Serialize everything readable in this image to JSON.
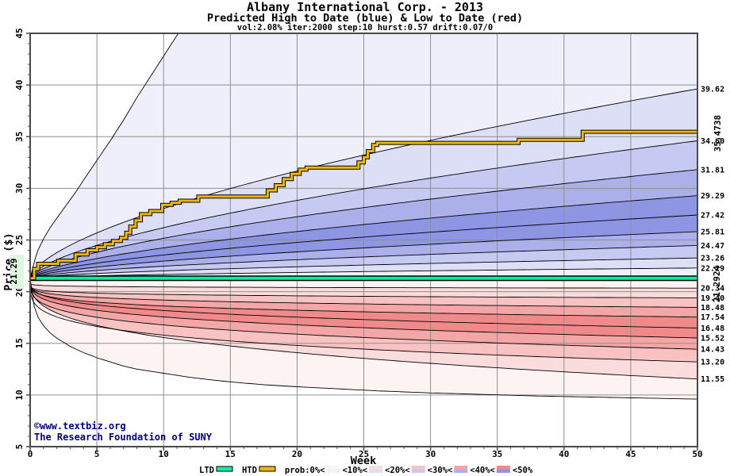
{
  "title": "Albany International Corp. - 2013",
  "subtitle": "Predicted High to Date (blue) &  Low to Date (red)",
  "params_line": "vol:2.08% iter:2000 step:10 hurst:0.57 drift:0.07/0",
  "copyright": {
    "line1": "©www.textbiz.org",
    "line2": "The Research Foundation of SUNY"
  },
  "legend": {
    "ltd_label": "LTD",
    "htd_label": "HTD",
    "prob_labels": [
      "prob:0%<",
      "<10%<",
      "<20%<",
      "<30%<",
      "<40%<",
      "<50%"
    ]
  },
  "colors": {
    "blue_bands": [
      "#eeeffb",
      "#dddff6",
      "#c6c9f1",
      "#abb0eb",
      "#8e95e3"
    ],
    "red_bands": [
      "#fdf3f3",
      "#fbdcdc",
      "#f8c2c2",
      "#f4a5a5",
      "#f08a8a"
    ],
    "htd_line": "#f2b705",
    "ltd_line": "#00f2a0",
    "htd_label": "#c07d00",
    "ltd_label": "#00a87d",
    "start_label_color": "#272770",
    "start_label_bg": "#dff6df",
    "grid": "#8f8f8f",
    "frame": "#4a4a4a",
    "navy": "#000080",
    "curve": "#000000"
  },
  "chart_data": {
    "type": "area",
    "title": "Albany International Corp. - 2013",
    "xlabel": "Week",
    "ylabel": "Price ($)",
    "xlim": [
      0,
      50
    ],
    "ylim": [
      5,
      45
    ],
    "x_ticks": [
      0,
      5,
      10,
      15,
      20,
      25,
      30,
      35,
      40,
      45,
      50
    ],
    "y_ticks": [
      5,
      10,
      15,
      20,
      25,
      30,
      35,
      40,
      45
    ],
    "grid": "on",
    "start_price": 21.29,
    "start_label": "21.29",
    "ltd": {
      "value": 21.2924,
      "label": "21.2924"
    },
    "htd": {
      "final": 35.4738,
      "label": "35.4738",
      "steps": [
        [
          0,
          21.3
        ],
        [
          0.3,
          22.2
        ],
        [
          0.6,
          22.7
        ],
        [
          2.1,
          23.0
        ],
        [
          3.4,
          23.6
        ],
        [
          4.3,
          24.0
        ],
        [
          5.0,
          24.3
        ],
        [
          5.6,
          24.6
        ],
        [
          6.2,
          24.9
        ],
        [
          6.8,
          25.2
        ],
        [
          7.2,
          25.7
        ],
        [
          7.5,
          26.3
        ],
        [
          7.9,
          26.9
        ],
        [
          8.3,
          27.5
        ],
        [
          9.0,
          27.8
        ],
        [
          9.9,
          28.4
        ],
        [
          10.6,
          28.6
        ],
        [
          11.2,
          28.8
        ],
        [
          12.6,
          29.2
        ],
        [
          17.8,
          29.8
        ],
        [
          18.4,
          30.3
        ],
        [
          19.0,
          30.9
        ],
        [
          19.6,
          31.4
        ],
        [
          20.2,
          31.8
        ],
        [
          20.7,
          32.0
        ],
        [
          24.6,
          32.5
        ],
        [
          25.0,
          33.0
        ],
        [
          25.3,
          33.6
        ],
        [
          25.7,
          34.2
        ],
        [
          26.0,
          34.4
        ],
        [
          36.6,
          34.7
        ],
        [
          41.4,
          35.47
        ],
        [
          50,
          35.47
        ]
      ]
    },
    "high_envelope": [
      [
        0,
        21.29
      ],
      [
        0.5,
        23.8
      ],
      [
        1,
        25.1
      ],
      [
        1.5,
        26.2
      ],
      [
        2,
        27.1
      ],
      [
        2.5,
        28.0
      ],
      [
        3,
        28.9
      ],
      [
        3.5,
        29.8
      ],
      [
        4,
        30.8
      ],
      [
        5,
        32.7
      ],
      [
        6,
        34.6
      ],
      [
        7,
        36.6
      ],
      [
        8,
        38.8
      ],
      [
        9,
        40.8
      ],
      [
        10,
        42.8
      ],
      [
        11,
        44.8
      ],
      [
        12,
        46.6
      ],
      [
        13,
        48.2
      ],
      [
        15,
        51
      ],
      [
        20,
        56
      ],
      [
        25,
        60
      ],
      [
        30,
        63.5
      ],
      [
        35,
        66.5
      ],
      [
        40,
        69.5
      ],
      [
        45,
        72
      ],
      [
        50,
        74.5
      ]
    ],
    "high_quantiles": [
      {
        "end": 39.62,
        "exp": 0.62
      },
      {
        "end": 34.6,
        "exp": 0.62
      },
      {
        "end": 31.81,
        "exp": 0.62
      },
      {
        "end": 29.29,
        "exp": 0.62
      },
      {
        "end": 27.42,
        "exp": 0.62
      },
      {
        "end": 25.81,
        "exp": 0.62
      },
      {
        "end": 24.47,
        "exp": 0.62
      },
      {
        "end": 23.26,
        "exp": 0.62
      },
      {
        "end": 22.29,
        "exp": 0.62
      }
    ],
    "low_quantiles": [
      {
        "end": 20.34,
        "exp": 0.08
      },
      {
        "end": 19.4,
        "exp": 0.12
      },
      {
        "end": 18.48,
        "exp": 0.18
      },
      {
        "end": 17.54,
        "exp": 0.21
      },
      {
        "end": 16.48,
        "exp": 0.27
      },
      {
        "end": 15.52,
        "exp": 0.27
      },
      {
        "end": 14.43,
        "exp": 0.26
      },
      {
        "end": 13.2,
        "exp": 0.24
      },
      {
        "end": 11.55,
        "exp": 0.33
      }
    ],
    "low_envelope": [
      [
        0,
        21.29
      ],
      [
        0.3,
        18.6
      ],
      [
        0.6,
        17.5
      ],
      [
        1,
        16.7
      ],
      [
        1.5,
        16.0
      ],
      [
        2,
        15.5
      ],
      [
        2.5,
        15.1
      ],
      [
        3,
        14.7
      ],
      [
        4,
        14.1
      ],
      [
        5,
        13.6
      ],
      [
        6,
        13.2
      ],
      [
        7,
        12.8
      ],
      [
        8,
        12.5
      ],
      [
        9,
        12.3
      ],
      [
        10,
        12.1
      ],
      [
        12,
        11.7
      ],
      [
        14,
        11.4
      ],
      [
        16,
        11.15
      ],
      [
        18,
        10.95
      ],
      [
        20,
        10.8
      ],
      [
        23,
        10.6
      ],
      [
        26,
        10.4
      ],
      [
        30,
        10.2
      ],
      [
        34,
        10.05
      ],
      [
        38,
        9.9
      ],
      [
        42,
        9.8
      ],
      [
        46,
        9.7
      ],
      [
        50,
        9.6
      ]
    ],
    "right_labels": [
      {
        "value": 39.62,
        "text": "39.62"
      },
      {
        "value": 34.6,
        "text": "34.60"
      },
      {
        "value": 31.81,
        "text": "31.81"
      },
      {
        "value": 29.29,
        "text": "29.29"
      },
      {
        "value": 27.42,
        "text": "27.42"
      },
      {
        "value": 25.81,
        "text": "25.81"
      },
      {
        "value": 24.47,
        "text": "24.47"
      },
      {
        "value": 23.26,
        "text": "23.26"
      },
      {
        "value": 22.29,
        "text": "22.29"
      },
      {
        "value": 20.34,
        "text": "20.34"
      },
      {
        "value": 19.4,
        "text": "19.40"
      },
      {
        "value": 18.48,
        "text": "18.48"
      },
      {
        "value": 17.54,
        "text": "17.54"
      },
      {
        "value": 16.48,
        "text": "16.48"
      },
      {
        "value": 15.52,
        "text": "15.52"
      },
      {
        "value": 14.43,
        "text": "14.43"
      },
      {
        "value": 13.2,
        "text": "13.20"
      },
      {
        "value": 11.55,
        "text": "11.55"
      }
    ]
  }
}
